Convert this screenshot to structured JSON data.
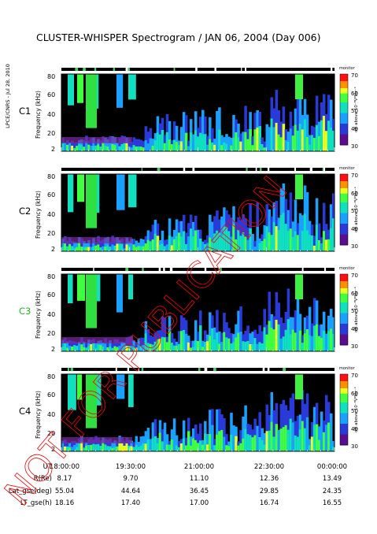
{
  "title": "CLUSTER-WHISPER Spectrogram / JAN 06, 2004 (Day 006)",
  "side_label": "LPCE/CNRS - Jul 28, 2010",
  "watermark": "NOT FOR PUBLICATION",
  "panels": [
    {
      "sc": "C1",
      "sc_color": "#000000"
    },
    {
      "sc": "C2",
      "sc_color": "#000000"
    },
    {
      "sc": "C3",
      "sc_color": "#22bb22"
    },
    {
      "sc": "C4",
      "sc_color": "#000000"
    }
  ],
  "freq_axis": {
    "label": "Frequency (kHz)",
    "ticks": [
      "80",
      "60",
      "40",
      "20",
      "2"
    ]
  },
  "colorbar": {
    "label": "dB above 10⁻⁸V²Hz⁻¹",
    "ticks": [
      "70",
      "60",
      "50",
      "40",
      "30"
    ],
    "mode_label": "monitor"
  },
  "orbit": {
    "labels": [
      "UT",
      "R(Re)",
      "Lat_gse(deg)",
      "LT_gse(h)"
    ],
    "columns": [
      [
        "18:00:00",
        "8.17",
        "55.04",
        "18.16"
      ],
      [
        "19:30:00",
        "9.70",
        "44.64",
        "17.40"
      ],
      [
        "21:00:00",
        "11.10",
        "36.45",
        "17.00"
      ],
      [
        "22:30:00",
        "12.36",
        "29.85",
        "16.74"
      ],
      [
        "00:00:00",
        "13.49",
        "24.35",
        "16.55"
      ]
    ]
  },
  "colors": {
    "watermark": "#ff0000",
    "background": "#000000"
  }
}
